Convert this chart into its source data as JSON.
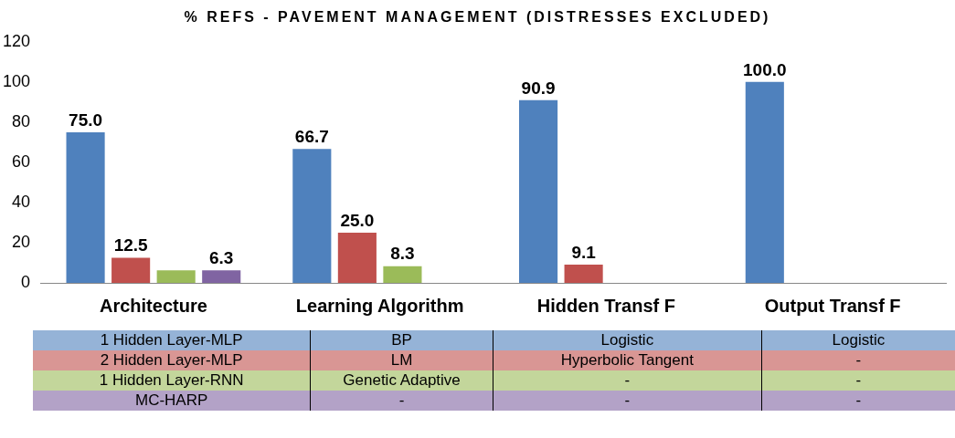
{
  "chart_data": {
    "type": "bar",
    "title": "% REFS - PAVEMENT MANAGEMENT (DISTRESSES EXCLUDED)",
    "categories": [
      "Architecture",
      "Learning Algorithm",
      "Hidden Transf F",
      "Output Transf F"
    ],
    "series": [
      {
        "color": "#4f81bd",
        "values": [
          75.0,
          66.7,
          90.9,
          100.0
        ],
        "value_labels": [
          "75.0",
          "66.7",
          "90.9",
          "100.0"
        ]
      },
      {
        "color": "#c0504d",
        "values": [
          12.5,
          25.0,
          9.1,
          null
        ],
        "value_labels": [
          "12.5",
          "25.0",
          "9.1",
          null
        ]
      },
      {
        "color": "#9bbb59",
        "values": [
          6.3,
          8.3,
          null,
          null
        ],
        "value_labels": [
          null,
          "8.3",
          null,
          null
        ]
      },
      {
        "color": "#8064a2",
        "values": [
          6.3,
          null,
          null,
          null
        ],
        "value_labels": [
          "6.3",
          null,
          null,
          null
        ]
      }
    ],
    "ylim": [
      0,
      120
    ],
    "yticks": [
      0,
      20,
      40,
      60,
      80,
      100,
      120
    ],
    "grid": false,
    "legend": false,
    "annotations": [
      "1 Hidden Layer-MLP",
      "BP",
      "Logistic",
      "Logistic",
      "2 Hidden Layer-MLP",
      "LM",
      "Hyperbolic Tangent",
      "-",
      "1 Hidden Layer-RNN",
      "Genetic Adaptive",
      "-",
      "-",
      "MC-HARP",
      "-",
      "-",
      "-"
    ]
  }
}
